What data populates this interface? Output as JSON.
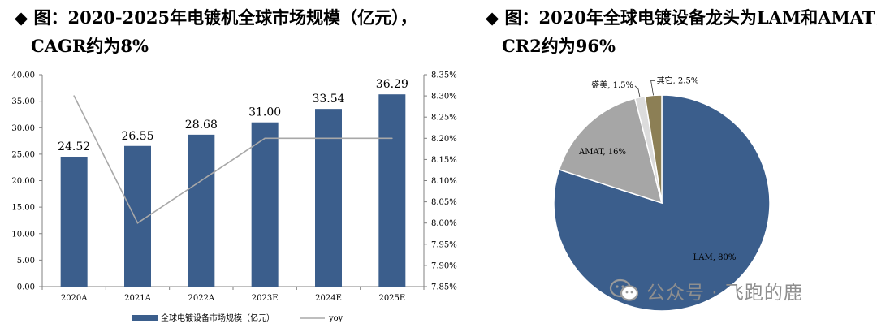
{
  "left_panel": {
    "title_bullet": "◆",
    "title_line1": "图：2020-2025年电镀机全球市场规模（亿元），",
    "title_line2": "CAGR约为8%"
  },
  "right_panel": {
    "title_bullet": "◆",
    "title_line1": "图：2020年全球电镀设备龙头为LAM和AMAT，",
    "title_line2": "CR2约为96%"
  },
  "watermark": {
    "text": "公众号 · 飞跑的鹿"
  },
  "chart_data": [
    {
      "type": "bar",
      "title": "2020-2025年电镀机全球市场规模（亿元）",
      "categories": [
        "2020A",
        "2021A",
        "2022A",
        "2023E",
        "2024E",
        "2025E"
      ],
      "series": [
        {
          "name": "全球电镀设备市场规模（亿元）",
          "type": "bar",
          "axis": "left",
          "values": [
            24.52,
            26.55,
            28.68,
            31.0,
            33.54,
            36.29
          ],
          "labels": [
            "24.52",
            "26.55",
            "28.68",
            "31.00",
            "33.54",
            "36.29"
          ],
          "color": "#3b5e8c"
        },
        {
          "name": "yoy",
          "type": "line",
          "axis": "right",
          "values": [
            8.3,
            8.0,
            8.1,
            8.2,
            8.2,
            8.2
          ],
          "color": "#a8a8a8"
        }
      ],
      "y_left": {
        "min": 0,
        "max": 40,
        "step": 5,
        "tick_labels": [
          "0.00",
          "5.00",
          "10.00",
          "15.00",
          "20.00",
          "25.00",
          "30.00",
          "35.00",
          "40.00"
        ]
      },
      "y_right": {
        "min": 7.85,
        "max": 8.35,
        "step": 0.05,
        "tick_labels": [
          "7.85%",
          "7.90%",
          "7.95%",
          "8.00%",
          "8.05%",
          "8.10%",
          "8.15%",
          "8.20%",
          "8.25%",
          "8.30%",
          "8.35%"
        ]
      },
      "legend": {
        "position": "bottom"
      },
      "grid": false
    },
    {
      "type": "pie",
      "title": "2020年全球电镀设备龙头为LAM和AMAT",
      "slices": [
        {
          "label": "LAM, 80%",
          "value": 80,
          "color": "#3b5e8c"
        },
        {
          "label": "AMAT, 16%",
          "value": 16,
          "color": "#a6a6a6"
        },
        {
          "label": "盛美, 1.5%",
          "value": 1.5,
          "color": "#dcdcdc"
        },
        {
          "label": "其它, 2.5%",
          "value": 2.5,
          "color": "#8c7f55"
        }
      ]
    }
  ]
}
